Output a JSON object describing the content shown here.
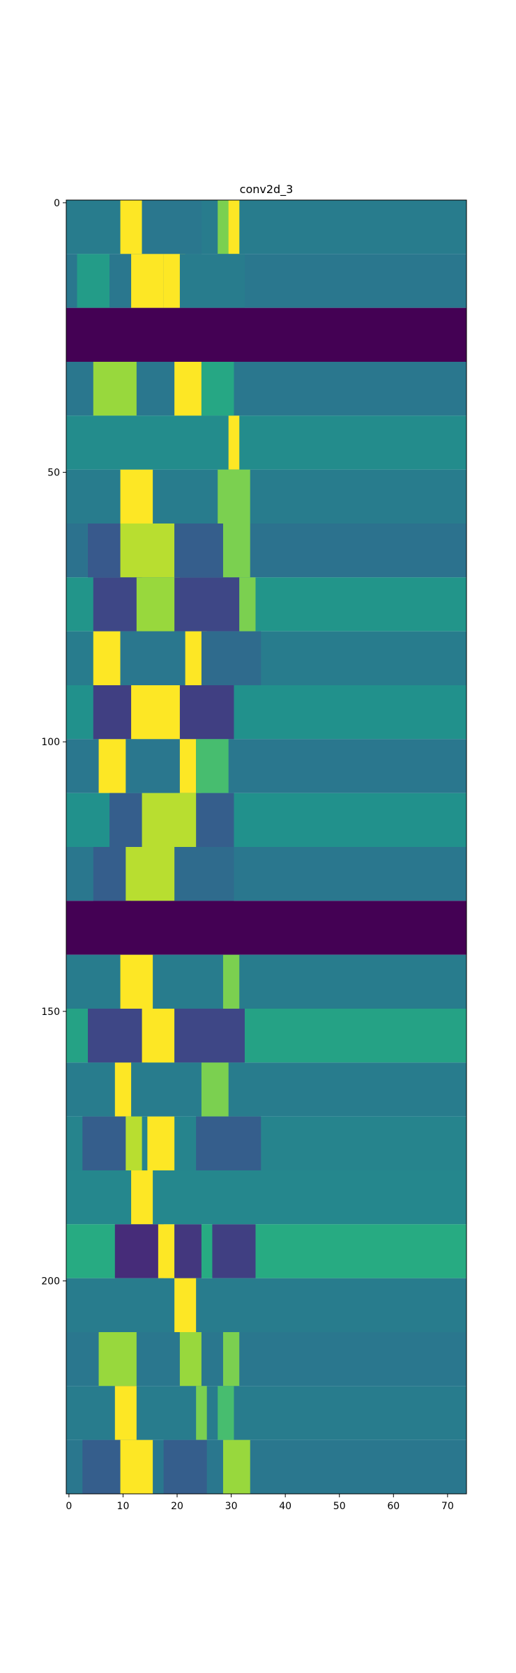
{
  "chart_data": {
    "type": "heatmap",
    "title": "conv2d_3",
    "xlabel": "",
    "ylabel": "",
    "n_cols": 74,
    "n_rows": 240,
    "xlim": [
      -0.5,
      73.5
    ],
    "ylim": [
      239.5,
      -0.5
    ],
    "x_ticks": [
      0,
      10,
      20,
      30,
      40,
      50,
      60,
      70
    ],
    "y_ticks": [
      0,
      50,
      100,
      150,
      200
    ],
    "colormap": "viridis",
    "colors": {
      "viridis_low": "#440154",
      "viridis_midlow": "#3b528b",
      "viridis_mid": "#21918c",
      "viridis_midhigh": "#5ec962",
      "viridis_high": "#fde725",
      "background_teal": "#2a7f8e"
    },
    "bands": [
      {
        "rows": [
          0,
          9
        ],
        "bg": 0.42,
        "stripes": [
          [
            10,
            13,
            1.0
          ],
          [
            14,
            24,
            0.4
          ],
          [
            28,
            31,
            0.8
          ],
          [
            30,
            31,
            1.0
          ]
        ]
      },
      {
        "rows": [
          10,
          19
        ],
        "bg": 0.4,
        "stripes": [
          [
            2,
            7,
            0.55
          ],
          [
            12,
            17,
            1.0
          ],
          [
            18,
            21,
            1.0
          ],
          [
            21,
            32,
            0.42
          ]
        ]
      },
      {
        "rows": [
          20,
          29
        ],
        "bg": 0.0,
        "stripes": []
      },
      {
        "rows": [
          30,
          39
        ],
        "bg": 0.4,
        "stripes": [
          [
            5,
            12,
            0.85
          ],
          [
            20,
            24,
            1.0
          ],
          [
            25,
            30,
            0.6
          ]
        ]
      },
      {
        "rows": [
          40,
          49
        ],
        "bg": 0.48,
        "stripes": [
          [
            30,
            31,
            1.0
          ]
        ]
      },
      {
        "rows": [
          50,
          59
        ],
        "bg": 0.42,
        "stripes": [
          [
            10,
            15,
            1.0
          ],
          [
            28,
            33,
            0.8
          ]
        ]
      },
      {
        "rows": [
          60,
          69
        ],
        "bg": 0.38,
        "stripes": [
          [
            4,
            11,
            0.28
          ],
          [
            10,
            19,
            0.9
          ],
          [
            20,
            29,
            0.3
          ],
          [
            29,
            33,
            0.8
          ]
        ]
      },
      {
        "rows": [
          70,
          79
        ],
        "bg": 0.52,
        "stripes": [
          [
            5,
            13,
            0.22
          ],
          [
            13,
            20,
            0.85
          ],
          [
            20,
            31,
            0.22
          ],
          [
            32,
            34,
            0.8
          ]
        ]
      },
      {
        "rows": [
          80,
          89
        ],
        "bg": 0.42,
        "stripes": [
          [
            5,
            9,
            1.0
          ],
          [
            10,
            22,
            0.4
          ],
          [
            22,
            25,
            1.0
          ],
          [
            25,
            35,
            0.35
          ]
        ]
      },
      {
        "rows": [
          90,
          99
        ],
        "bg": 0.5,
        "stripes": [
          [
            5,
            12,
            0.2
          ],
          [
            12,
            21,
            1.0
          ],
          [
            21,
            30,
            0.2
          ]
        ]
      },
      {
        "rows": [
          100,
          109
        ],
        "bg": 0.4,
        "stripes": [
          [
            6,
            10,
            1.0
          ],
          [
            21,
            23,
            1.0
          ],
          [
            24,
            29,
            0.7
          ]
        ]
      },
      {
        "rows": [
          110,
          119
        ],
        "bg": 0.5,
        "stripes": [
          [
            8,
            13,
            0.3
          ],
          [
            14,
            24,
            0.9
          ],
          [
            24,
            30,
            0.3
          ]
        ]
      },
      {
        "rows": [
          120,
          129
        ],
        "bg": 0.4,
        "stripes": [
          [
            5,
            11,
            0.3
          ],
          [
            11,
            20,
            0.9
          ],
          [
            20,
            30,
            0.35
          ]
        ]
      },
      {
        "rows": [
          130,
          139
        ],
        "bg": 0.0,
        "stripes": []
      },
      {
        "rows": [
          140,
          149
        ],
        "bg": 0.42,
        "stripes": [
          [
            10,
            15,
            1.0
          ],
          [
            29,
            31,
            0.8
          ]
        ]
      },
      {
        "rows": [
          150,
          159
        ],
        "bg": 0.58,
        "stripes": [
          [
            4,
            14,
            0.22
          ],
          [
            14,
            19,
            1.0
          ],
          [
            20,
            32,
            0.22
          ]
        ]
      },
      {
        "rows": [
          160,
          169
        ],
        "bg": 0.42,
        "stripes": [
          [
            9,
            11,
            1.0
          ],
          [
            25,
            29,
            0.8
          ]
        ]
      },
      {
        "rows": [
          170,
          179
        ],
        "bg": 0.45,
        "stripes": [
          [
            3,
            10,
            0.3
          ],
          [
            11,
            13,
            0.9
          ],
          [
            15,
            19,
            1.0
          ],
          [
            24,
            35,
            0.3
          ]
        ]
      },
      {
        "rows": [
          180,
          189
        ],
        "bg": 0.46,
        "stripes": [
          [
            12,
            15,
            1.0
          ]
        ]
      },
      {
        "rows": [
          190,
          199
        ],
        "bg": 0.62,
        "stripes": [
          [
            9,
            17,
            0.15
          ],
          [
            17,
            19,
            1.0
          ],
          [
            20,
            24,
            0.18
          ],
          [
            27,
            34,
            0.2
          ]
        ]
      },
      {
        "rows": [
          200,
          209
        ],
        "bg": 0.42,
        "stripes": [
          [
            20,
            23,
            1.0
          ]
        ]
      },
      {
        "rows": [
          210,
          219
        ],
        "bg": 0.4,
        "stripes": [
          [
            6,
            12,
            0.85
          ],
          [
            21,
            24,
            0.85
          ],
          [
            29,
            31,
            0.8
          ]
        ]
      },
      {
        "rows": [
          220,
          229
        ],
        "bg": 0.42,
        "stripes": [
          [
            9,
            12,
            1.0
          ],
          [
            24,
            25,
            0.8
          ],
          [
            28,
            30,
            0.7
          ]
        ]
      },
      {
        "rows": [
          230,
          239
        ],
        "bg": 0.4,
        "stripes": [
          [
            3,
            9,
            0.3
          ],
          [
            10,
            15,
            1.0
          ],
          [
            18,
            25,
            0.3
          ],
          [
            29,
            33,
            0.85
          ]
        ]
      }
    ]
  }
}
